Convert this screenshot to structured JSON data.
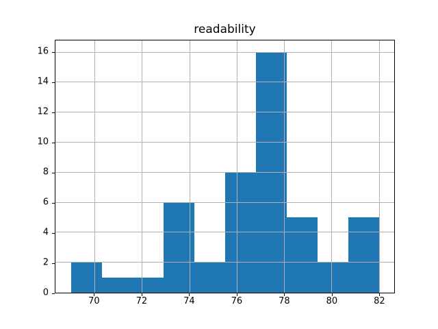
{
  "figure": {
    "background_color": "#ffffff",
    "spine_color": "#000000",
    "text_color": "#000000"
  },
  "chart_data": {
    "type": "bar",
    "subtype": "histogram",
    "title": "readability",
    "xlabel": "",
    "ylabel": "",
    "bin_edges": [
      69.0,
      70.3,
      71.6,
      72.9,
      74.2,
      75.5,
      76.8,
      78.1,
      79.4,
      80.7,
      82.0
    ],
    "values": [
      2,
      1,
      1,
      6,
      2,
      8,
      16,
      5,
      2,
      5
    ],
    "xlim": [
      68.35,
      82.65
    ],
    "ylim": [
      0,
      16.8
    ],
    "x_ticks": [
      70,
      72,
      74,
      76,
      78,
      80,
      82
    ],
    "y_ticks": [
      0,
      2,
      4,
      6,
      8,
      10,
      12,
      14,
      16
    ],
    "grid": true,
    "grid_over_bars": true,
    "legend_position": "none",
    "bar_color": "#1f77b4",
    "grid_color": "#b0b0b0"
  }
}
